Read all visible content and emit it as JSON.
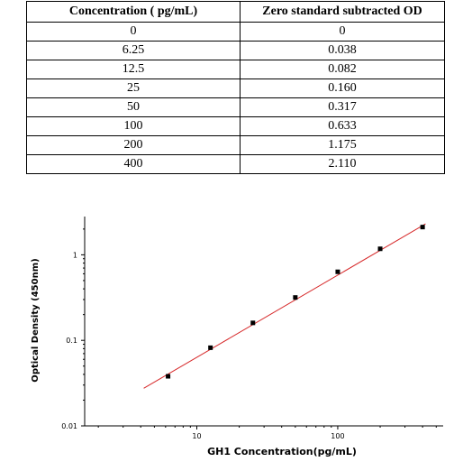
{
  "table": {
    "headers": [
      "Concentration ( pg/mL)",
      "Zero standard subtracted OD"
    ],
    "rows": [
      [
        "0",
        "0"
      ],
      [
        "6.25",
        "0.038"
      ],
      [
        "12.5",
        "0.082"
      ],
      [
        "25",
        "0.160"
      ],
      [
        "50",
        "0.317"
      ],
      [
        "100",
        "0.633"
      ],
      [
        "200",
        "1.175"
      ],
      [
        "400",
        "2.110"
      ]
    ]
  },
  "chart_data": {
    "type": "scatter",
    "xlabel": "GH1  Concentration(pg/mL)",
    "ylabel": "Optical Density (450nm)",
    "xscale": "log",
    "yscale": "log",
    "xlim": [
      1.6,
      560
    ],
    "ylim": [
      0.01,
      2.8
    ],
    "x_ticks": [
      "10",
      "100"
    ],
    "y_ticks": [
      "0.01",
      "0.1",
      "1"
    ],
    "x": [
      6.25,
      12.5,
      25,
      50,
      100,
      200,
      400
    ],
    "y": [
      0.038,
      0.082,
      0.16,
      0.317,
      0.633,
      1.175,
      2.11
    ],
    "fit_line": {
      "x_start": 4.2,
      "x_end": 420,
      "y_start": 0.0275,
      "y_end": 2.3,
      "color": "#d62728"
    },
    "marker_color": "#000000",
    "grid": false
  }
}
